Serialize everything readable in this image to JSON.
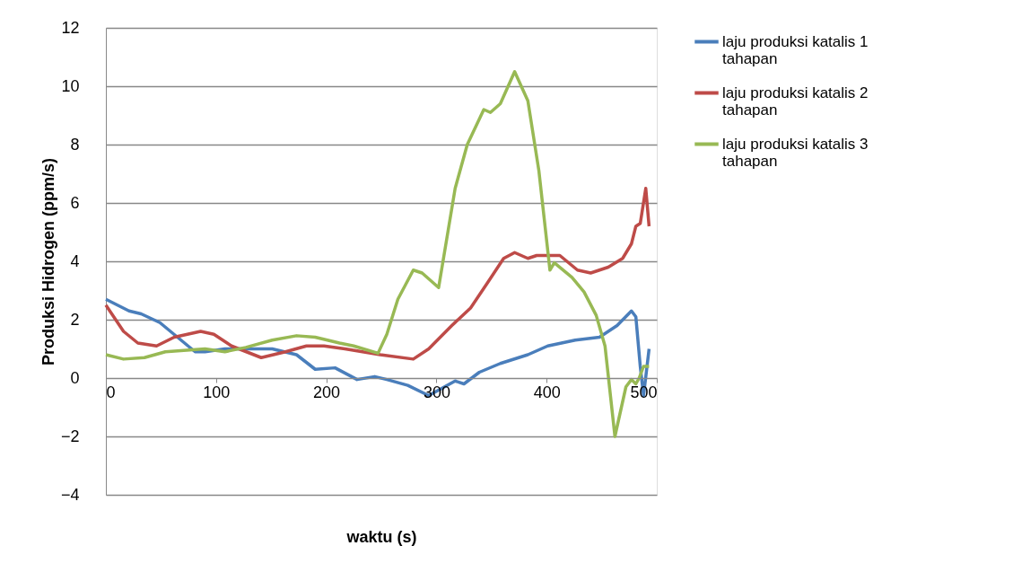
{
  "chart_data": {
    "type": "line",
    "xlabel": "waktu (s)",
    "ylabel": "Produksi Hidrogen (ppm/s)",
    "xlim": [
      0,
      500
    ],
    "xticks": [
      0,
      100,
      200,
      300,
      400,
      500
    ],
    "ylim": [
      -4,
      12
    ],
    "yticks": [
      -4,
      -2,
      0,
      2,
      4,
      6,
      8,
      10,
      12
    ],
    "grid": "y",
    "legend": "right",
    "line_style": "solid",
    "marker": "none",
    "series": [
      {
        "name": "laju produksi katalis 1 tahapan",
        "color": "#4a7ebb",
        "x": [
          0,
          21,
          32,
          49,
          65,
          81,
          90,
          108,
          151,
          173,
          190,
          208,
          228,
          244,
          255,
          274,
          293,
          317,
          325,
          339,
          358,
          383,
          401,
          426,
          448,
          464,
          477,
          481,
          485,
          488,
          493
        ],
        "values": [
          2.7,
          2.3,
          2.2,
          1.9,
          1.4,
          0.9,
          0.9,
          1.0,
          1.0,
          0.8,
          0.3,
          0.35,
          -0.05,
          0.05,
          -0.05,
          -0.25,
          -0.6,
          -0.1,
          -0.2,
          0.2,
          0.5,
          0.8,
          1.1,
          1.3,
          1.4,
          1.8,
          2.3,
          2.1,
          0.4,
          -0.6,
          1.0
        ]
      },
      {
        "name": "laju produksi katalis 2 tahapan",
        "color": "#be4b48",
        "x": [
          0,
          16,
          29,
          46,
          62,
          86,
          98,
          114,
          141,
          163,
          182,
          198,
          217,
          249,
          279,
          293,
          314,
          331,
          347,
          361,
          371,
          383,
          391,
          412,
          428,
          440,
          456,
          469,
          477,
          481,
          485,
          490,
          493
        ],
        "values": [
          2.5,
          1.6,
          1.2,
          1.1,
          1.4,
          1.6,
          1.5,
          1.1,
          0.7,
          0.9,
          1.1,
          1.1,
          1.0,
          0.8,
          0.65,
          1.0,
          1.8,
          2.4,
          3.3,
          4.1,
          4.3,
          4.1,
          4.2,
          4.2,
          3.7,
          3.6,
          3.8,
          4.1,
          4.6,
          5.2,
          5.3,
          6.5,
          5.2
        ]
      },
      {
        "name": "laju produksi katalis 3 tahapan",
        "color": "#98b954",
        "x": [
          0,
          16,
          35,
          54,
          90,
          108,
          127,
          151,
          173,
          190,
          212,
          225,
          247,
          255,
          265,
          279,
          287,
          302,
          317,
          328,
          343,
          349,
          358,
          371,
          383,
          393,
          403,
          407,
          423,
          434,
          445,
          453,
          462,
          472,
          477,
          481,
          484,
          488,
          493
        ],
        "values": [
          0.8,
          0.65,
          0.7,
          0.9,
          1.0,
          0.9,
          1.05,
          1.3,
          1.45,
          1.4,
          1.2,
          1.1,
          0.85,
          1.5,
          2.7,
          3.7,
          3.6,
          3.1,
          6.5,
          8.0,
          9.2,
          9.1,
          9.4,
          10.5,
          9.5,
          7.1,
          3.7,
          3.95,
          3.45,
          2.95,
          2.15,
          1.1,
          -2.0,
          -0.3,
          -0.05,
          -0.2,
          0.0,
          0.4,
          0.4
        ]
      }
    ]
  }
}
